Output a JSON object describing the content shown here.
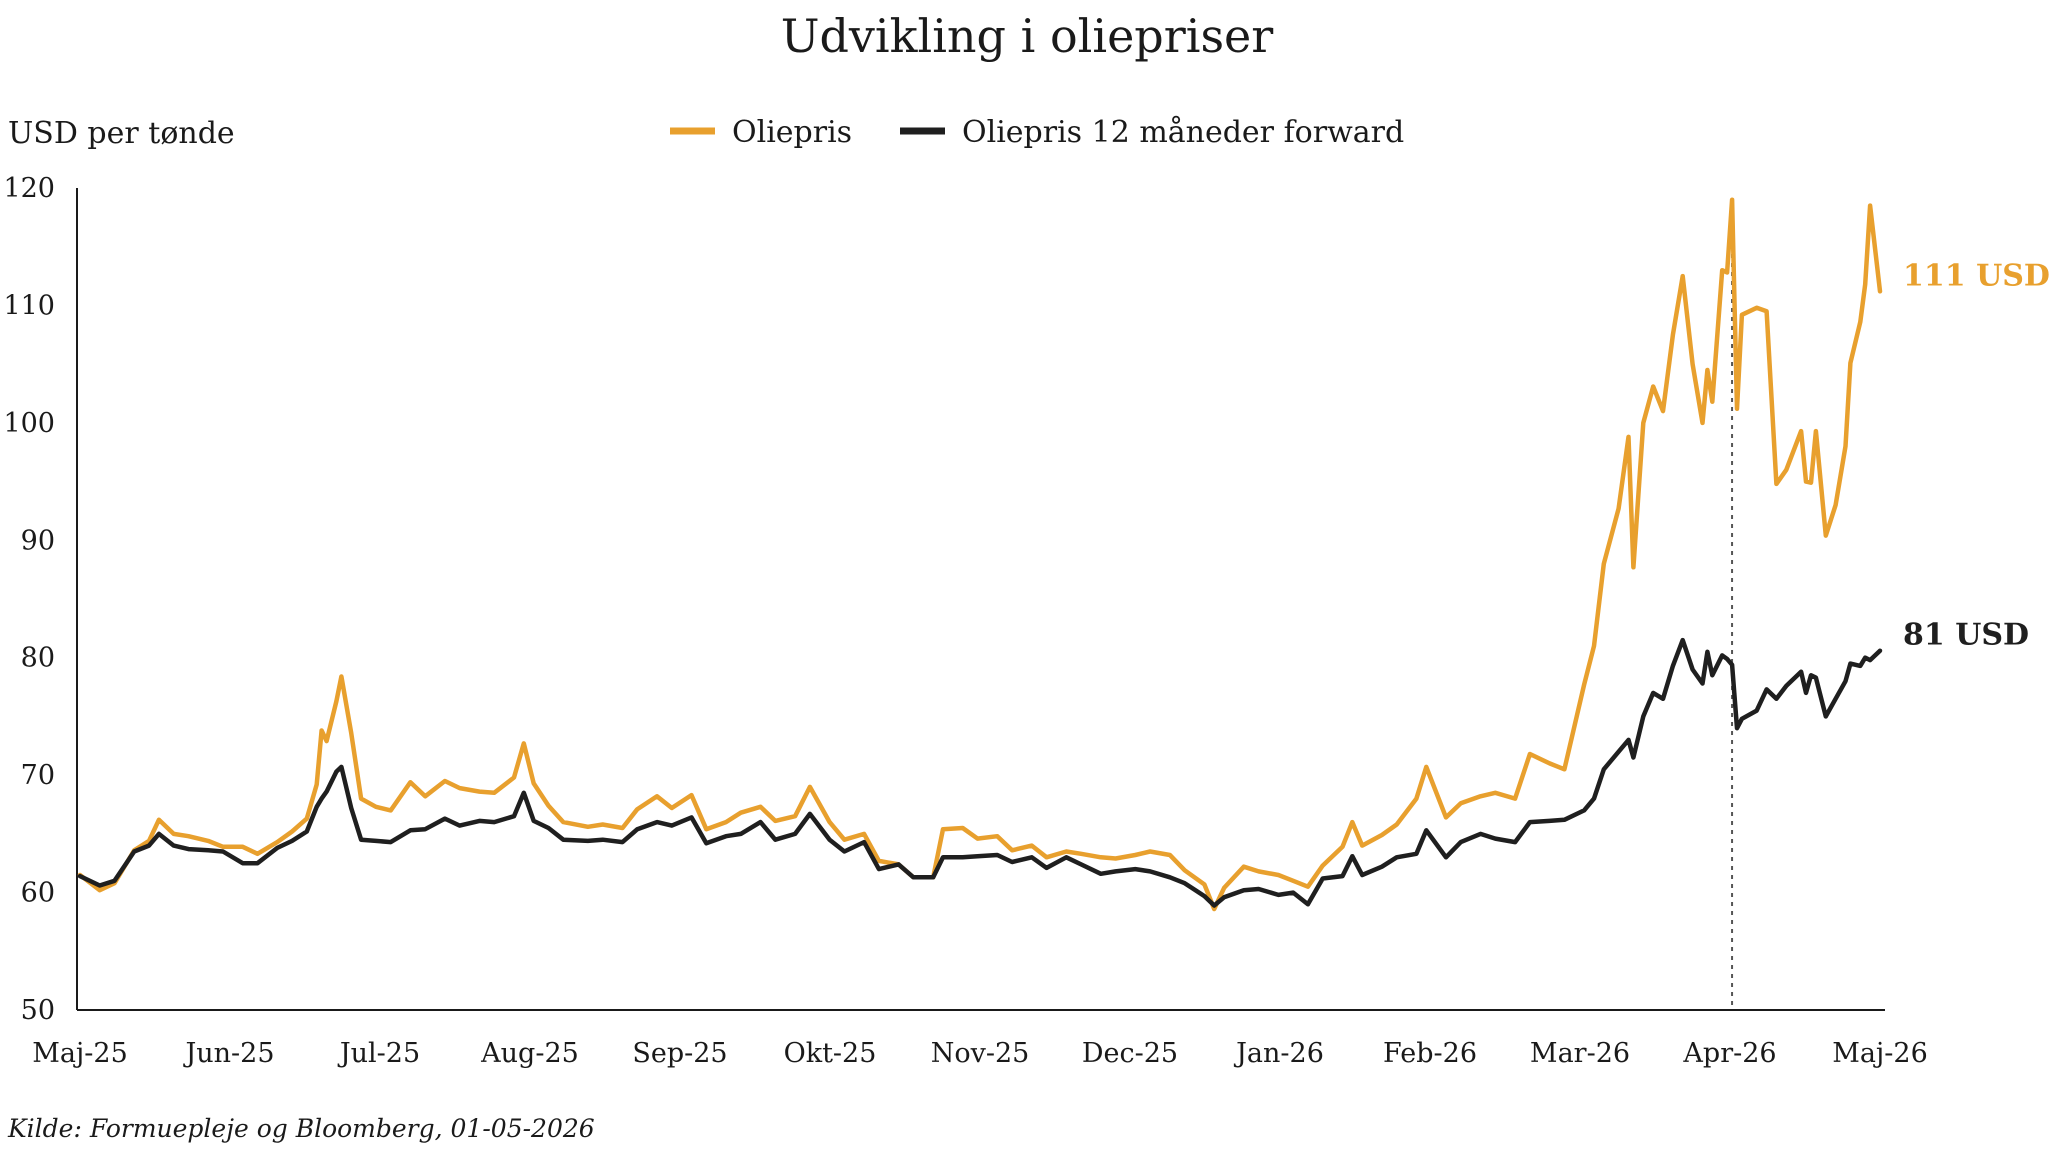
{
  "chart_data": {
    "type": "line",
    "title": "Udvikling i oliepriser",
    "ylabel": "USD per tønde",
    "ylim": [
      50,
      120
    ],
    "yticks": [
      50,
      60,
      70,
      80,
      90,
      100,
      110,
      120
    ],
    "x_range": [
      "2025-05-01",
      "2026-05-01"
    ],
    "xtick_labels": [
      "Maj-25",
      "Jun-25",
      "Jul-25",
      "Aug-25",
      "Sep-25",
      "Okt-25",
      "Nov-25",
      "Dec-25",
      "Jan-26",
      "Feb-26",
      "Mar-26",
      "Apr-26",
      "Maj-26"
    ],
    "legend_placement": "top-center",
    "grid": false,
    "source": "Kilde: Formuepleje og Bloomberg, 01-05-2026",
    "marker_line": {
      "date": "2026-04-01",
      "style": "dotted"
    },
    "colors": {
      "oliepris": "#E8A02E",
      "forward": "#1f1f1f"
    },
    "series": [
      {
        "name": "Oliepris",
        "key": "oliepris",
        "end_label": "111 USD",
        "points": [
          [
            "2025-05-01",
            61.5
          ],
          [
            "2025-05-05",
            60.2
          ],
          [
            "2025-05-08",
            60.8
          ],
          [
            "2025-05-12",
            63.6
          ],
          [
            "2025-05-15",
            64.4
          ],
          [
            "2025-05-17",
            66.2
          ],
          [
            "2025-05-20",
            65.0
          ],
          [
            "2025-05-23",
            64.8
          ],
          [
            "2025-05-27",
            64.4
          ],
          [
            "2025-05-30",
            63.9
          ],
          [
            "2025-06-03",
            63.9
          ],
          [
            "2025-06-06",
            63.3
          ],
          [
            "2025-06-10",
            64.3
          ],
          [
            "2025-06-13",
            65.2
          ],
          [
            "2025-06-16",
            66.3
          ],
          [
            "2025-06-18",
            69.2
          ],
          [
            "2025-06-19",
            73.8
          ],
          [
            "2025-06-20",
            72.9
          ],
          [
            "2025-06-22",
            76.3
          ],
          [
            "2025-06-23",
            78.4
          ],
          [
            "2025-06-25",
            73.6
          ],
          [
            "2025-06-27",
            68.0
          ],
          [
            "2025-06-30",
            67.3
          ],
          [
            "2025-07-03",
            67.0
          ],
          [
            "2025-07-07",
            69.4
          ],
          [
            "2025-07-10",
            68.2
          ],
          [
            "2025-07-14",
            69.5
          ],
          [
            "2025-07-17",
            68.9
          ],
          [
            "2025-07-21",
            68.6
          ],
          [
            "2025-07-24",
            68.5
          ],
          [
            "2025-07-28",
            69.8
          ],
          [
            "2025-07-30",
            72.7
          ],
          [
            "2025-08-01",
            69.3
          ],
          [
            "2025-08-04",
            67.4
          ],
          [
            "2025-08-07",
            66.0
          ],
          [
            "2025-08-12",
            65.6
          ],
          [
            "2025-08-15",
            65.8
          ],
          [
            "2025-08-19",
            65.5
          ],
          [
            "2025-08-22",
            67.1
          ],
          [
            "2025-08-26",
            68.2
          ],
          [
            "2025-08-29",
            67.2
          ],
          [
            "2025-09-02",
            68.3
          ],
          [
            "2025-09-05",
            65.4
          ],
          [
            "2025-09-09",
            66.0
          ],
          [
            "2025-09-12",
            66.8
          ],
          [
            "2025-09-16",
            67.3
          ],
          [
            "2025-09-19",
            66.1
          ],
          [
            "2025-09-23",
            66.5
          ],
          [
            "2025-09-26",
            69.0
          ],
          [
            "2025-09-30",
            66.0
          ],
          [
            "2025-10-03",
            64.5
          ],
          [
            "2025-10-07",
            65.0
          ],
          [
            "2025-10-10",
            62.7
          ],
          [
            "2025-10-14",
            62.4
          ],
          [
            "2025-10-17",
            61.3
          ],
          [
            "2025-10-21",
            61.3
          ],
          [
            "2025-10-23",
            65.4
          ],
          [
            "2025-10-27",
            65.5
          ],
          [
            "2025-10-30",
            64.6
          ],
          [
            "2025-11-03",
            64.8
          ],
          [
            "2025-11-06",
            63.6
          ],
          [
            "2025-11-10",
            64.0
          ],
          [
            "2025-11-13",
            63.0
          ],
          [
            "2025-11-17",
            63.5
          ],
          [
            "2025-11-20",
            63.3
          ],
          [
            "2025-11-24",
            63.0
          ],
          [
            "2025-11-27",
            62.9
          ],
          [
            "2025-12-01",
            63.2
          ],
          [
            "2025-12-04",
            63.5
          ],
          [
            "2025-12-08",
            63.2
          ],
          [
            "2025-12-11",
            61.9
          ],
          [
            "2025-12-15",
            60.7
          ],
          [
            "2025-12-17",
            58.6
          ],
          [
            "2025-12-19",
            60.4
          ],
          [
            "2025-12-23",
            62.2
          ],
          [
            "2025-12-26",
            61.8
          ],
          [
            "2025-12-30",
            61.5
          ],
          [
            "2026-01-02",
            61.0
          ],
          [
            "2026-01-05",
            60.5
          ],
          [
            "2026-01-08",
            62.3
          ],
          [
            "2026-01-12",
            63.9
          ],
          [
            "2026-01-14",
            66.0
          ],
          [
            "2026-01-16",
            64.0
          ],
          [
            "2026-01-20",
            64.9
          ],
          [
            "2026-01-23",
            65.8
          ],
          [
            "2026-01-27",
            68.0
          ],
          [
            "2026-01-29",
            70.7
          ],
          [
            "2026-02-02",
            66.4
          ],
          [
            "2026-02-05",
            67.6
          ],
          [
            "2026-02-09",
            68.2
          ],
          [
            "2026-02-12",
            68.5
          ],
          [
            "2026-02-16",
            68.0
          ],
          [
            "2026-02-19",
            71.8
          ],
          [
            "2026-02-23",
            71.0
          ],
          [
            "2026-02-26",
            70.5
          ],
          [
            "2026-03-02",
            77.7
          ],
          [
            "2026-03-04",
            81.0
          ],
          [
            "2026-03-06",
            88.0
          ],
          [
            "2026-03-09",
            92.7
          ],
          [
            "2026-03-11",
            98.8
          ],
          [
            "2026-03-12",
            87.7
          ],
          [
            "2026-03-14",
            100.0
          ],
          [
            "2026-03-16",
            103.1
          ],
          [
            "2026-03-18",
            101.0
          ],
          [
            "2026-03-20",
            107.5
          ],
          [
            "2026-03-22",
            112.5
          ],
          [
            "2026-03-24",
            105.0
          ],
          [
            "2026-03-26",
            100.0
          ],
          [
            "2026-03-27",
            104.5
          ],
          [
            "2026-03-28",
            101.8
          ],
          [
            "2026-03-30",
            113.0
          ],
          [
            "2026-03-31",
            112.8
          ],
          [
            "2026-04-01",
            119.0
          ],
          [
            "2026-04-02",
            101.2
          ],
          [
            "2026-04-03",
            109.2
          ],
          [
            "2026-04-06",
            109.8
          ],
          [
            "2026-04-08",
            109.5
          ],
          [
            "2026-04-10",
            94.8
          ],
          [
            "2026-04-12",
            96.0
          ],
          [
            "2026-04-15",
            99.3
          ],
          [
            "2026-04-16",
            95.0
          ],
          [
            "2026-04-17",
            94.9
          ],
          [
            "2026-04-18",
            99.3
          ],
          [
            "2026-04-20",
            90.4
          ],
          [
            "2026-04-22",
            93.0
          ],
          [
            "2026-04-24",
            98.0
          ],
          [
            "2026-04-25",
            105.1
          ],
          [
            "2026-04-27",
            108.6
          ],
          [
            "2026-04-28",
            111.8
          ],
          [
            "2026-04-29",
            118.5
          ],
          [
            "2026-05-01",
            111.2
          ]
        ]
      },
      {
        "name": "Oliepris 12 måneder forward",
        "key": "forward",
        "end_label": "81 USD",
        "points": [
          [
            "2025-05-01",
            61.4
          ],
          [
            "2025-05-05",
            60.6
          ],
          [
            "2025-05-08",
            61.0
          ],
          [
            "2025-05-12",
            63.5
          ],
          [
            "2025-05-15",
            64.0
          ],
          [
            "2025-05-17",
            65.0
          ],
          [
            "2025-05-20",
            64.0
          ],
          [
            "2025-05-23",
            63.7
          ],
          [
            "2025-05-27",
            63.6
          ],
          [
            "2025-05-30",
            63.5
          ],
          [
            "2025-06-03",
            62.5
          ],
          [
            "2025-06-06",
            62.5
          ],
          [
            "2025-06-10",
            63.8
          ],
          [
            "2025-06-13",
            64.4
          ],
          [
            "2025-06-16",
            65.2
          ],
          [
            "2025-06-18",
            67.3
          ],
          [
            "2025-06-19",
            68.0
          ],
          [
            "2025-06-20",
            68.6
          ],
          [
            "2025-06-22",
            70.3
          ],
          [
            "2025-06-23",
            70.7
          ],
          [
            "2025-06-25",
            67.2
          ],
          [
            "2025-06-27",
            64.5
          ],
          [
            "2025-06-30",
            64.4
          ],
          [
            "2025-07-03",
            64.3
          ],
          [
            "2025-07-07",
            65.3
          ],
          [
            "2025-07-10",
            65.4
          ],
          [
            "2025-07-14",
            66.3
          ],
          [
            "2025-07-17",
            65.7
          ],
          [
            "2025-07-21",
            66.1
          ],
          [
            "2025-07-24",
            66.0
          ],
          [
            "2025-07-28",
            66.5
          ],
          [
            "2025-07-30",
            68.5
          ],
          [
            "2025-08-01",
            66.1
          ],
          [
            "2025-08-04",
            65.5
          ],
          [
            "2025-08-07",
            64.5
          ],
          [
            "2025-08-12",
            64.4
          ],
          [
            "2025-08-15",
            64.5
          ],
          [
            "2025-08-19",
            64.3
          ],
          [
            "2025-08-22",
            65.4
          ],
          [
            "2025-08-26",
            66.0
          ],
          [
            "2025-08-29",
            65.7
          ],
          [
            "2025-09-02",
            66.4
          ],
          [
            "2025-09-05",
            64.2
          ],
          [
            "2025-09-09",
            64.8
          ],
          [
            "2025-09-12",
            65.0
          ],
          [
            "2025-09-16",
            66.0
          ],
          [
            "2025-09-19",
            64.5
          ],
          [
            "2025-09-23",
            65.0
          ],
          [
            "2025-09-26",
            66.7
          ],
          [
            "2025-09-30",
            64.5
          ],
          [
            "2025-10-03",
            63.5
          ],
          [
            "2025-10-07",
            64.3
          ],
          [
            "2025-10-10",
            62.0
          ],
          [
            "2025-10-14",
            62.4
          ],
          [
            "2025-10-17",
            61.3
          ],
          [
            "2025-10-21",
            61.3
          ],
          [
            "2025-10-23",
            63.0
          ],
          [
            "2025-10-27",
            63.0
          ],
          [
            "2025-10-30",
            63.1
          ],
          [
            "2025-11-03",
            63.2
          ],
          [
            "2025-11-06",
            62.6
          ],
          [
            "2025-11-10",
            63.0
          ],
          [
            "2025-11-13",
            62.1
          ],
          [
            "2025-11-17",
            63.0
          ],
          [
            "2025-11-20",
            62.4
          ],
          [
            "2025-11-24",
            61.6
          ],
          [
            "2025-11-27",
            61.8
          ],
          [
            "2025-12-01",
            62.0
          ],
          [
            "2025-12-04",
            61.8
          ],
          [
            "2025-12-08",
            61.3
          ],
          [
            "2025-12-11",
            60.8
          ],
          [
            "2025-12-15",
            59.7
          ],
          [
            "2025-12-17",
            58.9
          ],
          [
            "2025-12-19",
            59.6
          ],
          [
            "2025-12-23",
            60.2
          ],
          [
            "2025-12-26",
            60.3
          ],
          [
            "2025-12-30",
            59.8
          ],
          [
            "2026-01-02",
            60.0
          ],
          [
            "2026-01-05",
            59.0
          ],
          [
            "2026-01-08",
            61.2
          ],
          [
            "2026-01-12",
            61.4
          ],
          [
            "2026-01-14",
            63.1
          ],
          [
            "2026-01-16",
            61.5
          ],
          [
            "2026-01-20",
            62.2
          ],
          [
            "2026-01-23",
            63.0
          ],
          [
            "2026-01-27",
            63.3
          ],
          [
            "2026-01-29",
            65.3
          ],
          [
            "2026-02-02",
            63.0
          ],
          [
            "2026-02-05",
            64.3
          ],
          [
            "2026-02-09",
            65.0
          ],
          [
            "2026-02-12",
            64.6
          ],
          [
            "2026-02-16",
            64.3
          ],
          [
            "2026-02-19",
            66.0
          ],
          [
            "2026-02-23",
            66.1
          ],
          [
            "2026-02-26",
            66.2
          ],
          [
            "2026-03-02",
            67.0
          ],
          [
            "2026-03-04",
            68.0
          ],
          [
            "2026-03-06",
            70.5
          ],
          [
            "2026-03-09",
            72.0
          ],
          [
            "2026-03-11",
            73.0
          ],
          [
            "2026-03-12",
            71.5
          ],
          [
            "2026-03-14",
            75.0
          ],
          [
            "2026-03-16",
            77.0
          ],
          [
            "2026-03-18",
            76.5
          ],
          [
            "2026-03-20",
            79.3
          ],
          [
            "2026-03-22",
            81.5
          ],
          [
            "2026-03-24",
            79.0
          ],
          [
            "2026-03-26",
            77.8
          ],
          [
            "2026-03-27",
            80.5
          ],
          [
            "2026-03-28",
            78.5
          ],
          [
            "2026-03-30",
            80.2
          ],
          [
            "2026-03-31",
            79.9
          ],
          [
            "2026-04-01",
            79.4
          ],
          [
            "2026-04-02",
            74.0
          ],
          [
            "2026-04-03",
            74.8
          ],
          [
            "2026-04-06",
            75.5
          ],
          [
            "2026-04-08",
            77.3
          ],
          [
            "2026-04-10",
            76.5
          ],
          [
            "2026-04-12",
            77.6
          ],
          [
            "2026-04-15",
            78.8
          ],
          [
            "2026-04-16",
            77.0
          ],
          [
            "2026-04-17",
            78.5
          ],
          [
            "2026-04-18",
            78.3
          ],
          [
            "2026-04-20",
            75.0
          ],
          [
            "2026-04-22",
            76.5
          ],
          [
            "2026-04-24",
            78.0
          ],
          [
            "2026-04-25",
            79.5
          ],
          [
            "2026-04-27",
            79.3
          ],
          [
            "2026-04-28",
            80.0
          ],
          [
            "2026-04-29",
            79.8
          ],
          [
            "2026-05-01",
            80.6
          ]
        ]
      }
    ]
  }
}
